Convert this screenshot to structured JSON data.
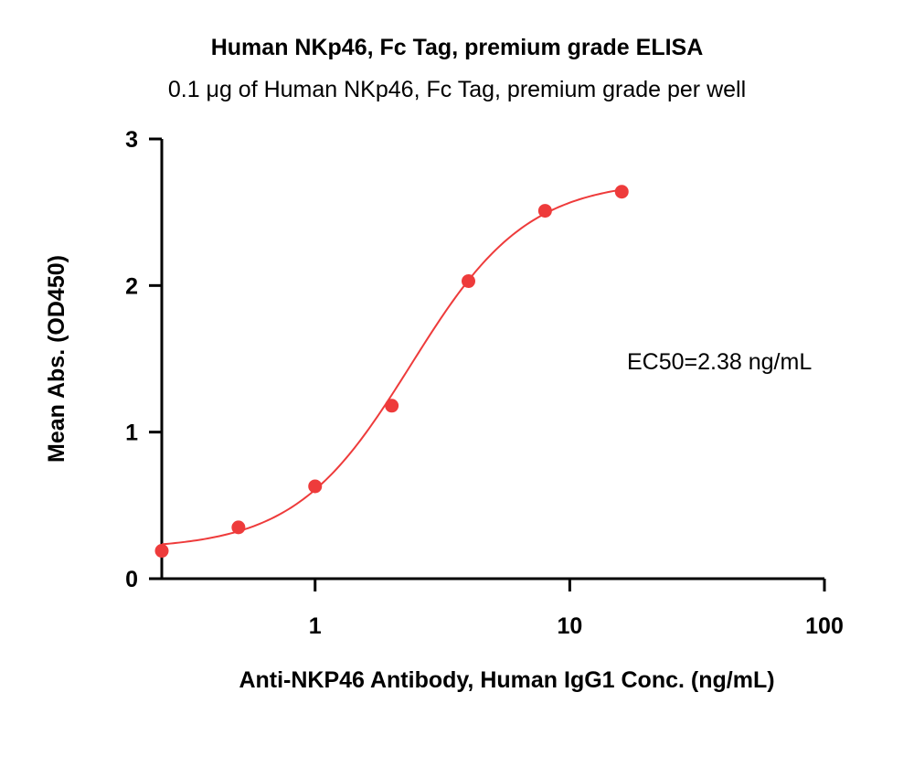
{
  "chart_data": {
    "type": "scatter",
    "title": "Human NKp46, Fc Tag, premium grade ELISA",
    "subtitle": "0.1 μg of Human NKp46, Fc Tag, premium grade per well",
    "xlabel": "Anti-NKP46 Antibody, Human IgG1 Conc. (ng/mL)",
    "ylabel": "Mean Abs. (OD450)",
    "x_scale": "log",
    "xlim": [
      0.25,
      100
    ],
    "ylim": [
      0,
      3
    ],
    "x_ticks": [
      1,
      10,
      100
    ],
    "x_tick_labels": [
      "1",
      "10",
      "100"
    ],
    "y_ticks": [
      0,
      1,
      2,
      3
    ],
    "y_tick_labels": [
      "0",
      "1",
      "2",
      "3"
    ],
    "series": [
      {
        "x": [
          0.25,
          0.5,
          1,
          2,
          4,
          8,
          16
        ],
        "y": [
          0.19,
          0.35,
          0.63,
          1.18,
          2.03,
          2.51,
          2.64
        ]
      }
    ],
    "fit_curve": {
      "model": "4PL",
      "bottom": 0.2,
      "top": 2.72,
      "ec50": 2.38,
      "hill": 1.9,
      "x_range": [
        0.25,
        16
      ]
    },
    "annotations": [
      "EC50=2.38 ng/mL"
    ],
    "grid": false,
    "color": "#ee3b3b",
    "axis_color": "#000000"
  }
}
